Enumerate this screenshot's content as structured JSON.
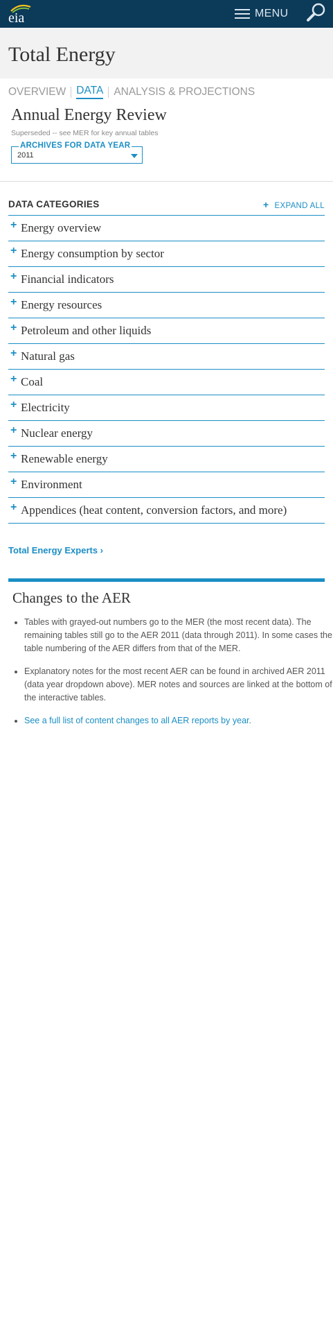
{
  "topbar": {
    "logo_text": "eia",
    "menu_label": "MENU"
  },
  "page": {
    "title": "Total Energy"
  },
  "subnav": {
    "items": [
      "OVERVIEW",
      "DATA",
      "ANALYSIS & PROJECTIONS"
    ],
    "active": "DATA"
  },
  "aer": {
    "title": "Annual Energy Review",
    "subtitle": "Superseded -- see MER for key annual tables",
    "archive_label": "ARCHIVES FOR DATA YEAR",
    "archive_value": "2011"
  },
  "categories": {
    "heading": "DATA CATEGORIES",
    "expand_all": "EXPAND ALL",
    "items": [
      "Energy overview",
      "Energy consumption by sector",
      "Financial indicators",
      "Energy resources",
      "Petroleum and other liquids",
      "Natural gas",
      "Coal",
      "Electricity",
      "Nuclear energy",
      "Renewable energy",
      "Environment",
      "Appendices (heat content, conversion factors, and more)"
    ]
  },
  "experts_link": "Total Energy Experts ›",
  "changes": {
    "title": "Changes to the AER",
    "bullets": [
      "Tables with grayed-out numbers go to the MER (the most recent data). The remaining tables still go to the AER 2011 (data through 2011). In some cases the table numbering of the AER differs from that of the MER.",
      "Explanatory notes for the most recent AER can be found in archived AER 2011 (data year dropdown above). MER notes and sources are linked at the bottom of the interactive tables."
    ],
    "link": "See a full list of content changes to all AER reports by year."
  },
  "colors": {
    "topbar": "#0c3a59",
    "accent": "#1b8ec4",
    "hero_bg": "#f2f2f2"
  }
}
